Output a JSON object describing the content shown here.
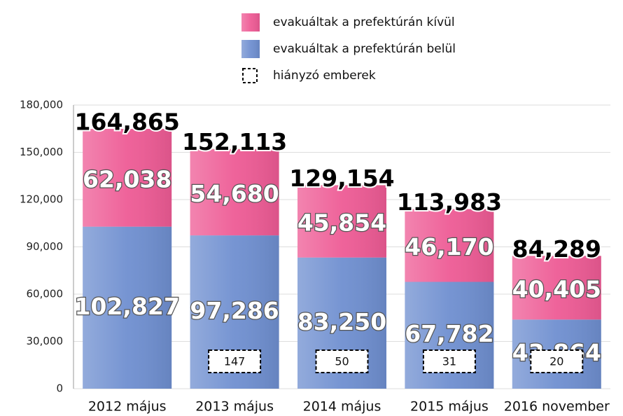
{
  "chart_data": {
    "type": "stacked_bar",
    "categories": [
      "2012 május",
      "2013 május",
      "2014 május",
      "2015 május",
      "2016 november"
    ],
    "series": [
      {
        "name": "evakuáltak a prefektúrán belül",
        "color": "#6f8fd0",
        "values": [
          102827,
          97286,
          83250,
          67782,
          43864
        ],
        "value_labels": [
          "102,827",
          "97,286",
          "83,250",
          "67,782",
          "43,864"
        ]
      },
      {
        "name": "evakuáltak a prefektúrán kívül",
        "color": "#ee5b95",
        "values": [
          62038,
          54680,
          45854,
          46170,
          40405
        ],
        "value_labels": [
          "62,038",
          "54,680",
          "45,854",
          "46,170",
          "40,405"
        ]
      },
      {
        "name": "hiányzó emberek",
        "color": "#ffffff",
        "values": [
          null,
          147,
          50,
          31,
          20
        ]
      }
    ],
    "totals": [
      164865,
      152113,
      129154,
      113983,
      84289
    ],
    "total_labels": [
      "164,865",
      "152,113",
      "129,154",
      "113,983",
      "84,289"
    ],
    "ylim": [
      0,
      180000
    ],
    "yticks": [
      0,
      {
        "value": 30000,
        "label": "30,000"
      },
      {
        "value": 60000,
        "label": "60,000"
      },
      {
        "value": 90000,
        "label": "90,000"
      },
      {
        "value": 120000,
        "label": "120,000"
      },
      {
        "value": 150000,
        "label": "150,000"
      },
      {
        "value": 180000,
        "label": "180,000"
      }
    ],
    "grid": true
  }
}
